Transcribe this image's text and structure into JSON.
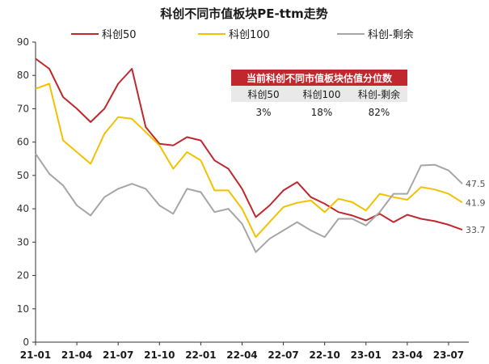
{
  "chart_data": {
    "type": "line",
    "title": "科创不同市值板块PE-ttm走势",
    "xlabel": "",
    "ylabel": "",
    "ylim": [
      0,
      90
    ],
    "yticks": [
      0,
      10,
      20,
      30,
      40,
      50,
      60,
      70,
      80,
      90
    ],
    "grid": false,
    "legend_position": "top",
    "x": [
      "21-01",
      "21-02",
      "21-03",
      "21-04",
      "21-05",
      "21-06",
      "21-07",
      "21-08",
      "21-09",
      "21-10",
      "21-11",
      "21-12",
      "22-01",
      "22-02",
      "22-03",
      "22-04",
      "22-05",
      "22-06",
      "22-07",
      "22-08",
      "22-09",
      "22-10",
      "22-11",
      "22-12",
      "23-01",
      "23-02",
      "23-03",
      "23-04",
      "23-05",
      "23-06",
      "23-07",
      "23-08"
    ],
    "x_tick_labels": [
      "21-01",
      "21-04",
      "21-07",
      "21-10",
      "22-01",
      "22-04",
      "22-07",
      "22-10",
      "23-01",
      "23-04",
      "23-07"
    ],
    "series": [
      {
        "name": "科创50",
        "color": "#c0282d",
        "values": [
          85,
          82,
          73.5,
          70,
          66,
          70,
          77.5,
          82,
          64.5,
          59.5,
          59,
          61.5,
          60.5,
          54.5,
          52,
          46,
          37.5,
          41,
          45.5,
          48,
          43.5,
          41.5,
          39,
          38,
          36.5,
          38.5,
          36,
          38.2,
          37,
          36.3,
          35.2,
          33.7
        ]
      },
      {
        "name": "科创100",
        "color": "#f2c100",
        "values": [
          76,
          77.5,
          60.5,
          57,
          53.5,
          62.5,
          67.5,
          67,
          63,
          59,
          52,
          57,
          54.5,
          45.5,
          45.5,
          40,
          31.5,
          36,
          40.5,
          41.8,
          42.5,
          39,
          43,
          42,
          39.5,
          44.5,
          43.5,
          42.7,
          46.5,
          45.8,
          44.5,
          41.9
        ]
      },
      {
        "name": "科创-剩余",
        "color": "#a6a6a6",
        "values": [
          56.5,
          50.5,
          47,
          41,
          38,
          43.5,
          46,
          47.5,
          46,
          41,
          38.5,
          46,
          45,
          39,
          40,
          35.5,
          27,
          31,
          33.5,
          36,
          33.5,
          31.5,
          37,
          37,
          35,
          39,
          44.5,
          44.5,
          53,
          53.2,
          51.5,
          47.5
        ]
      }
    ],
    "end_labels": [
      "33.7",
      "41.9",
      "47.5"
    ],
    "table": {
      "header": "当前科创不同市值板块估值分位数",
      "columns": [
        "科创50",
        "科创100",
        "科创-剩余"
      ],
      "values": [
        "3%",
        "18%",
        "82%"
      ],
      "header_color": "#c0282d"
    }
  }
}
